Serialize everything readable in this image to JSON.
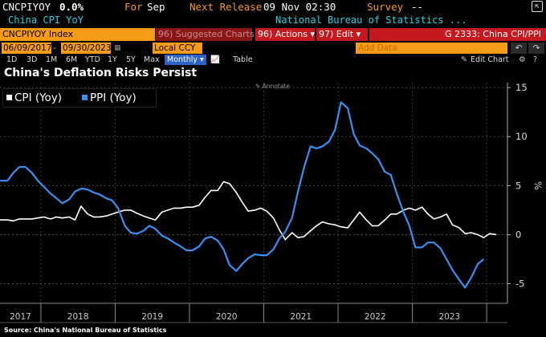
{
  "header": {
    "ticker": "CNCPIYOY",
    "value": "0.0%",
    "for_label": "For",
    "for_month": "Sep",
    "next_release_label": "Next Release",
    "next_release_date": "09 Nov 02:30",
    "survey_label": "Survey",
    "survey_value": "--",
    "subtitle": "China CPI YoY",
    "source_name": "National Bureau of Statistics ...",
    "icon": "export-icon"
  },
  "toolbar": {
    "index_label": "CNCPIYOY Index",
    "suggested": "96) Suggested Charts",
    "actions": "96) Actions ▾",
    "edit": "97) Edit ▾",
    "chart_name": "G 2333: China CPI/PPI"
  },
  "dates": {
    "start": "06/09/2017",
    "end": "09/30/2023",
    "currency": "Local CCY",
    "add_data": "Add Data",
    "undo": "↶",
    "redo": "↷"
  },
  "periods": {
    "items": [
      "1D",
      "3D",
      "1M",
      "6M",
      "YTD",
      "1Y",
      "5Y",
      "Max"
    ],
    "freq": "Monthly ▾",
    "table": "Table",
    "edit_chart": "Edit Chart"
  },
  "annotate": "Annotate",
  "colors": {
    "cpi": "#ffffff",
    "ppi": "#3a8ff0",
    "accent": "#f59b18",
    "red": "#c4191e"
  },
  "chart_data": {
    "type": "line",
    "title": "China's Deflation Risks Persist",
    "ylabel": "%",
    "ylim": [
      -7,
      15.5
    ],
    "yticks": [
      -5,
      0,
      5,
      10,
      15
    ],
    "xlim": [
      2016.95,
      2023.78
    ],
    "x_tick_labels": [
      "2017",
      "2018",
      "2019",
      "2020",
      "2021",
      "2022",
      "2023"
    ],
    "x_tick_positions": [
      2017,
      2018,
      2019,
      2020,
      2021,
      2022,
      2023
    ],
    "series": [
      {
        "name": "CPI (Yoy)",
        "points": [
          [
            2016.95,
            1.5
          ],
          [
            2017.05,
            1.5
          ],
          [
            2017.13,
            1.4
          ],
          [
            2017.21,
            1.6
          ],
          [
            2017.29,
            1.6
          ],
          [
            2017.38,
            1.6
          ],
          [
            2017.46,
            1.7
          ],
          [
            2017.54,
            1.8
          ],
          [
            2017.63,
            1.6
          ],
          [
            2017.71,
            1.8
          ],
          [
            2017.79,
            1.7
          ],
          [
            2017.88,
            1.8
          ],
          [
            2017.96,
            1.5
          ],
          [
            2018.04,
            2.9
          ],
          [
            2018.13,
            2.1
          ],
          [
            2018.21,
            1.8
          ],
          [
            2018.29,
            1.8
          ],
          [
            2018.38,
            1.9
          ],
          [
            2018.46,
            2.1
          ],
          [
            2018.54,
            2.3
          ],
          [
            2018.63,
            2.5
          ],
          [
            2018.71,
            2.5
          ],
          [
            2018.79,
            2.2
          ],
          [
            2018.88,
            1.9
          ],
          [
            2018.96,
            1.7
          ],
          [
            2019.04,
            1.5
          ],
          [
            2019.13,
            2.3
          ],
          [
            2019.21,
            2.5
          ],
          [
            2019.29,
            2.7
          ],
          [
            2019.38,
            2.7
          ],
          [
            2019.46,
            2.8
          ],
          [
            2019.54,
            2.8
          ],
          [
            2019.63,
            3.0
          ],
          [
            2019.71,
            3.8
          ],
          [
            2019.79,
            4.5
          ],
          [
            2019.88,
            4.5
          ],
          [
            2019.96,
            5.4
          ],
          [
            2020.04,
            5.2
          ],
          [
            2020.13,
            4.3
          ],
          [
            2020.21,
            3.3
          ],
          [
            2020.29,
            2.4
          ],
          [
            2020.38,
            2.5
          ],
          [
            2020.46,
            2.7
          ],
          [
            2020.54,
            2.4
          ],
          [
            2020.63,
            1.7
          ],
          [
            2020.71,
            0.5
          ],
          [
            2020.79,
            -0.5
          ],
          [
            2020.88,
            0.2
          ],
          [
            2020.96,
            -0.3
          ],
          [
            2021.04,
            -0.2
          ],
          [
            2021.13,
            0.4
          ],
          [
            2021.21,
            0.9
          ],
          [
            2021.29,
            1.3
          ],
          [
            2021.38,
            1.1
          ],
          [
            2021.46,
            1.0
          ],
          [
            2021.54,
            0.8
          ],
          [
            2021.63,
            0.7
          ],
          [
            2021.71,
            1.5
          ],
          [
            2021.79,
            2.3
          ],
          [
            2021.88,
            1.5
          ],
          [
            2021.96,
            0.9
          ],
          [
            2022.04,
            0.9
          ],
          [
            2022.13,
            1.5
          ],
          [
            2022.21,
            2.1
          ],
          [
            2022.29,
            2.1
          ],
          [
            2022.38,
            2.5
          ],
          [
            2022.46,
            2.7
          ],
          [
            2022.54,
            2.5
          ],
          [
            2022.63,
            2.8
          ],
          [
            2022.71,
            2.1
          ],
          [
            2022.79,
            1.6
          ],
          [
            2022.88,
            1.8
          ],
          [
            2022.96,
            2.1
          ],
          [
            2023.04,
            1.0
          ],
          [
            2023.13,
            0.7
          ],
          [
            2023.21,
            0.1
          ],
          [
            2023.29,
            0.2
          ],
          [
            2023.38,
            0.0
          ],
          [
            2023.46,
            -0.3
          ],
          [
            2023.54,
            0.1
          ],
          [
            2023.63,
            0.0
          ]
        ]
      },
      {
        "name": "PPI (Yoy)",
        "points": [
          [
            2016.95,
            5.5
          ],
          [
            2017.05,
            5.5
          ],
          [
            2017.13,
            6.3
          ],
          [
            2017.21,
            6.9
          ],
          [
            2017.29,
            6.9
          ],
          [
            2017.38,
            6.3
          ],
          [
            2017.46,
            5.5
          ],
          [
            2017.54,
            4.9
          ],
          [
            2017.63,
            4.2
          ],
          [
            2017.71,
            3.7
          ],
          [
            2017.79,
            3.2
          ],
          [
            2017.88,
            3.6
          ],
          [
            2017.96,
            4.4
          ],
          [
            2018.04,
            4.7
          ],
          [
            2018.13,
            4.6
          ],
          [
            2018.21,
            4.3
          ],
          [
            2018.29,
            4.1
          ],
          [
            2018.38,
            3.7
          ],
          [
            2018.46,
            3.5
          ],
          [
            2018.54,
            2.7
          ],
          [
            2018.63,
            0.9
          ],
          [
            2018.71,
            0.2
          ],
          [
            2018.79,
            0.1
          ],
          [
            2018.88,
            0.4
          ],
          [
            2018.96,
            0.9
          ],
          [
            2019.04,
            0.6
          ],
          [
            2019.13,
            -0.1
          ],
          [
            2019.21,
            -0.4
          ],
          [
            2019.29,
            -0.8
          ],
          [
            2019.38,
            -1.2
          ],
          [
            2019.46,
            -1.6
          ],
          [
            2019.54,
            -1.6
          ],
          [
            2019.63,
            -1.2
          ],
          [
            2019.71,
            -0.4
          ],
          [
            2019.79,
            -0.2
          ],
          [
            2019.88,
            -0.6
          ],
          [
            2019.96,
            -1.5
          ],
          [
            2020.04,
            -3.1
          ],
          [
            2020.13,
            -3.7
          ],
          [
            2020.21,
            -3.0
          ],
          [
            2020.29,
            -2.4
          ],
          [
            2020.38,
            -2.0
          ],
          [
            2020.46,
            -2.1
          ],
          [
            2020.54,
            -2.1
          ],
          [
            2020.63,
            -1.5
          ],
          [
            2020.71,
            -0.4
          ],
          [
            2020.79,
            0.3
          ],
          [
            2020.88,
            1.7
          ],
          [
            2020.96,
            4.4
          ],
          [
            2021.04,
            6.8
          ],
          [
            2021.13,
            9.0
          ],
          [
            2021.21,
            8.8
          ],
          [
            2021.29,
            9.0
          ],
          [
            2021.38,
            9.5
          ],
          [
            2021.46,
            10.7
          ],
          [
            2021.54,
            13.5
          ],
          [
            2021.63,
            12.9
          ],
          [
            2021.71,
            10.3
          ],
          [
            2021.79,
            9.1
          ],
          [
            2021.88,
            8.8
          ],
          [
            2021.96,
            8.3
          ],
          [
            2022.04,
            7.7
          ],
          [
            2022.13,
            6.4
          ],
          [
            2022.21,
            6.1
          ],
          [
            2022.29,
            4.2
          ],
          [
            2022.38,
            2.3
          ],
          [
            2022.46,
            0.9
          ],
          [
            2022.54,
            -1.3
          ],
          [
            2022.63,
            -1.3
          ],
          [
            2022.71,
            -0.8
          ],
          [
            2022.79,
            -0.8
          ],
          [
            2022.88,
            -1.4
          ],
          [
            2022.96,
            -2.5
          ],
          [
            2023.04,
            -3.6
          ],
          [
            2023.13,
            -4.6
          ],
          [
            2023.21,
            -5.4
          ],
          [
            2023.29,
            -4.4
          ],
          [
            2023.38,
            -3.0
          ],
          [
            2023.46,
            -2.5
          ]
        ]
      }
    ],
    "source": "Source: China's National Bureau of Statistics"
  }
}
